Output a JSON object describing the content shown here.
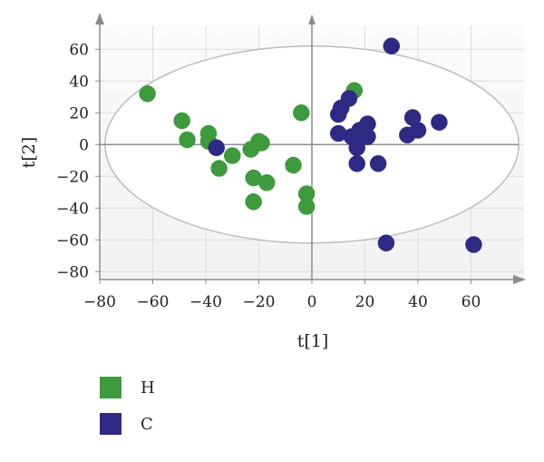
{
  "chart_data": {
    "type": "scatter",
    "xlabel": "t[1]",
    "ylabel": "t[2]",
    "xlim": [
      -80,
      80
    ],
    "ylim": [
      -85,
      75
    ],
    "xticks": [
      -80,
      -60,
      -40,
      -20,
      0,
      20,
      40,
      60
    ],
    "yticks": [
      -80,
      -60,
      -40,
      -20,
      0,
      20,
      40,
      60
    ],
    "xtick_labels": [
      "−80",
      "−60",
      "−40",
      "−20",
      "0",
      "20",
      "40",
      "60"
    ],
    "ytick_labels": [
      "−80",
      "−60",
      "−40",
      "−20",
      "0",
      "20",
      "40",
      "60"
    ],
    "grid": true,
    "ellipse": {
      "center": [
        0,
        0
      ],
      "rx": 78,
      "ry": 62
    },
    "legend_position": "bottom-left",
    "series": [
      {
        "name": "H",
        "color": "#3d9a3d",
        "points": [
          [
            -62,
            32
          ],
          [
            -49,
            15
          ],
          [
            -47,
            3
          ],
          [
            -39,
            7
          ],
          [
            -39,
            2
          ],
          [
            -35,
            -15
          ],
          [
            -30,
            -7
          ],
          [
            -23,
            -3
          ],
          [
            -22,
            -21
          ],
          [
            -22,
            -36
          ],
          [
            -20,
            2
          ],
          [
            -19,
            1
          ],
          [
            -17,
            -24
          ],
          [
            -7,
            -13
          ],
          [
            -4,
            20
          ],
          [
            -2,
            -31
          ],
          [
            -2,
            -39
          ],
          [
            16,
            34
          ]
        ]
      },
      {
        "name": "C",
        "color": "#2e2a83",
        "points": [
          [
            -36,
            -2
          ],
          [
            10,
            7
          ],
          [
            10,
            19
          ],
          [
            11,
            23
          ],
          [
            14,
            29
          ],
          [
            15,
            5
          ],
          [
            17,
            -2
          ],
          [
            17,
            -12
          ],
          [
            18,
            9
          ],
          [
            19,
            5
          ],
          [
            21,
            13
          ],
          [
            21,
            5
          ],
          [
            25,
            -12
          ],
          [
            28,
            -62
          ],
          [
            30,
            62
          ],
          [
            36,
            6
          ],
          [
            38,
            17
          ],
          [
            40,
            9
          ],
          [
            48,
            14
          ],
          [
            61,
            -63
          ]
        ]
      }
    ]
  }
}
